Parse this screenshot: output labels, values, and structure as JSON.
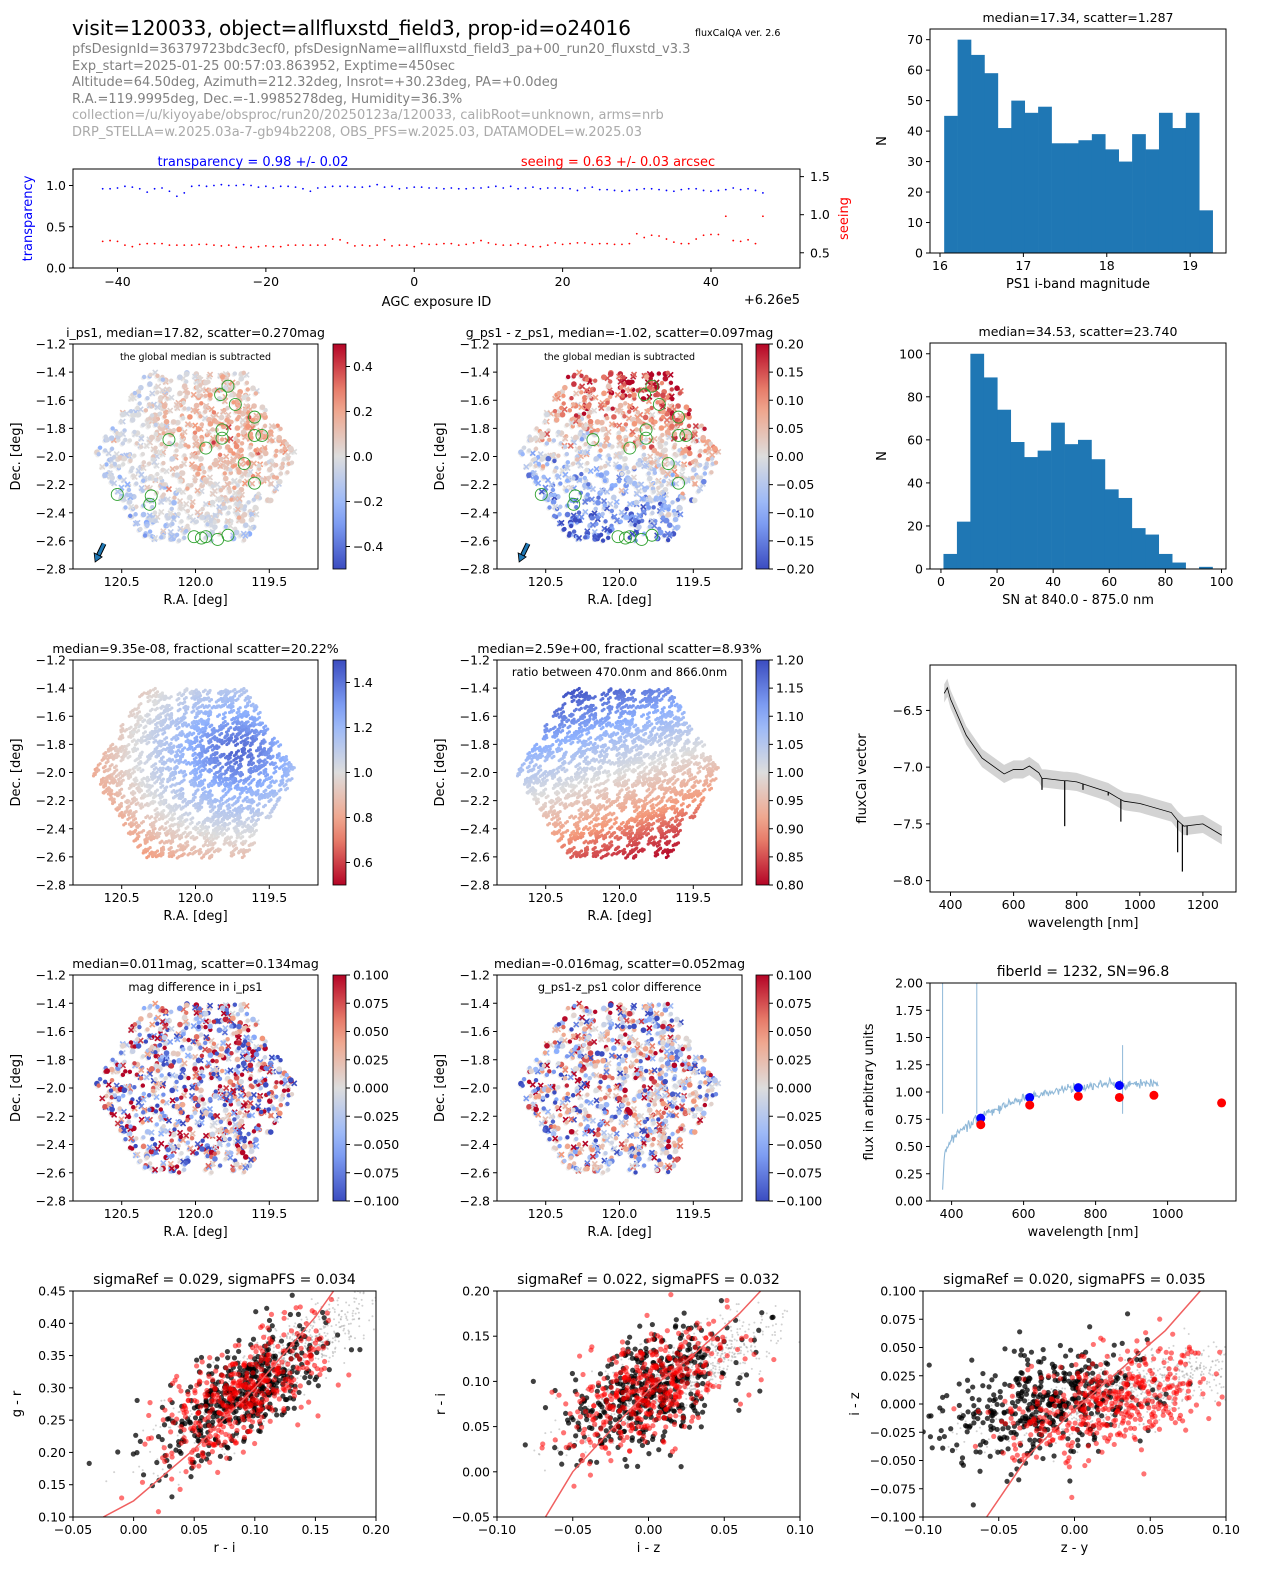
{
  "header": {
    "title": "visit=120033, object=allfluxstd_field3, prop-id=o24016",
    "version": "fluxCalQA ver. 2.6",
    "meta_lines": [
      "pfsDesignId=36379723bdc3ecf0, pfsDesignName=allfluxstd_field3_pa+00_run20_fluxstd_v3.3",
      "Exp_start=2025-01-25 00:57:03.863952, Exptime=450sec",
      "Altitude=64.50deg, Azimuth=212.32deg, Insrot=+30.23deg, PA=+0.0deg",
      "R.A.=119.9995deg, Dec.=-1.9985278deg, Humidity=36.3%"
    ],
    "meta_lines_light": [
      "collection=/u/kiyoyabe/obsproc/run20/20250123a/120033, calibRoot=unknown, arms=nrb",
      "DRP_STELLA=w.2025.03a-7-gb94b2208, OBS_PFS=w.2025.03, DATAMODEL=w.2025.03"
    ]
  },
  "colors": {
    "hist_bar": "#1f77b4",
    "transparency": "#0000ff",
    "seeing": "#ff0000",
    "spectrum_band": "#d3d3d3",
    "spectrum_line": "#000000",
    "fiber_spectrum": "#8fb8d8",
    "fit_curve": "#f06060"
  },
  "chart_data": [
    {
      "id": "agc",
      "type": "scatter",
      "xlabel": "AGC exposure ID",
      "x_offset_label": "+6.26e5",
      "ylabel_left": "transparency",
      "ylabel_right": "seeing",
      "annotation_left": "transparency = 0.98 +/- 0.02",
      "annotation_right": "seeing = 0.63 +/- 0.03 arcsec",
      "xlim": [
        -46,
        52
      ],
      "ylim_left": [
        0.0,
        1.2
      ],
      "ylim_right": [
        0.3,
        1.6
      ],
      "xticks": [
        -40,
        -20,
        0,
        20,
        40
      ],
      "yticks_left": [
        "0.0",
        "0.5",
        "1.0"
      ],
      "yticks_right": [
        "0.5",
        "1.0",
        "1.5"
      ],
      "x_start": -42,
      "x_step": 1,
      "series": [
        {
          "name": "transparency",
          "axis": "left",
          "values": [
            0.96,
            0.96,
            0.97,
            0.99,
            0.98,
            0.96,
            0.92,
            0.96,
            0.97,
            0.93,
            0.87,
            0.91,
            0.99,
            1.0,
            0.99,
            1.0,
            1.01,
            1.0,
            1.0,
            1.01,
            1.0,
            0.98,
            0.99,
            0.97,
            0.99,
            0.99,
            0.98,
            0.96,
            0.93,
            0.97,
            0.98,
            0.99,
            0.99,
            0.99,
            0.98,
            0.98,
            0.99,
            1.01,
            0.98,
            0.99,
            0.96,
            0.97,
            0.98,
            0.98,
            0.97,
            0.97,
            0.96,
            0.97,
            0.96,
            0.96,
            0.97,
            0.97,
            0.98,
            0.99,
            0.97,
            0.99,
            0.96,
            0.97,
            0.98,
            0.96,
            0.97,
            0.97,
            0.97,
            0.96,
            0.94,
            0.97,
            0.98,
            0.95,
            0.95,
            0.94,
            0.93,
            0.94,
            0.95,
            0.96,
            0.96,
            0.95,
            0.94,
            0.93,
            0.95,
            0.96,
            0.96,
            0.94,
            0.93,
            0.94,
            0.95,
            0.97,
            0.95,
            0.96,
            0.94,
            0.91
          ]
        },
        {
          "name": "seeing",
          "axis": "right",
          "values": [
            0.65,
            0.66,
            0.65,
            0.6,
            0.58,
            0.61,
            0.62,
            0.62,
            0.62,
            0.6,
            0.6,
            0.6,
            0.6,
            0.61,
            0.61,
            0.6,
            0.59,
            0.6,
            0.57,
            0.58,
            0.57,
            0.58,
            0.59,
            0.58,
            0.58,
            0.6,
            0.6,
            0.6,
            0.6,
            0.6,
            0.6,
            0.68,
            0.67,
            0.63,
            0.59,
            0.6,
            0.59,
            0.6,
            0.67,
            0.59,
            0.6,
            0.6,
            0.58,
            0.62,
            0.61,
            0.61,
            0.62,
            0.62,
            0.6,
            0.61,
            0.63,
            0.66,
            0.63,
            0.61,
            0.6,
            0.6,
            0.62,
            0.6,
            0.58,
            0.58,
            0.6,
            0.63,
            0.61,
            0.62,
            0.63,
            0.63,
            0.61,
            0.62,
            0.62,
            0.61,
            0.61,
            0.62,
            0.75,
            0.7,
            0.73,
            0.72,
            0.68,
            0.64,
            0.62,
            0.62,
            0.68,
            0.73,
            0.74,
            0.74,
            0.98,
            0.66,
            0.65,
            0.67,
            0.62,
            0.98
          ]
        }
      ]
    },
    {
      "id": "hist_mag",
      "type": "bar",
      "title": "median=17.34, scatter=1.287",
      "xlabel": "PS1 i-band magnitude",
      "ylabel": "N",
      "bin_start": 16.05,
      "bin_end": 19.27,
      "values": [
        45,
        70,
        65,
        59,
        41,
        50,
        46,
        48,
        36,
        36,
        37,
        39,
        34,
        30,
        39,
        34,
        46,
        41,
        46,
        14
      ],
      "xlim": [
        15.88,
        19.43
      ],
      "ylim": [
        0,
        73.5
      ],
      "xticks": [
        16,
        17,
        18,
        19
      ],
      "yticks": [
        0,
        10,
        20,
        30,
        40,
        50,
        60,
        70
      ]
    },
    {
      "id": "hist_sn",
      "type": "bar",
      "title": "median=34.53, scatter=23.740",
      "xlabel": "SN at 840.0 - 875.0 nm",
      "ylabel": "N",
      "bin_start": 0.9,
      "bin_end": 96.8,
      "values": [
        7,
        22,
        100,
        89,
        74,
        59,
        52,
        55,
        68,
        58,
        60,
        51,
        37,
        33,
        19,
        16,
        7,
        3,
        0,
        1
      ],
      "xlim": [
        -3.9,
        101.6
      ],
      "ylim": [
        0,
        105
      ],
      "xticks": [
        0,
        20,
        40,
        60,
        80,
        100
      ],
      "yticks": [
        0,
        20,
        40,
        60,
        80,
        100
      ]
    },
    {
      "id": "map_ips1",
      "type": "scatter",
      "title": "i_ps1, median=17.82, scatter=0.270mag",
      "annotation": "the global median is subtracted",
      "xlabel": "R.A. [deg]",
      "ylabel": "Dec. [deg]",
      "xlim": [
        120.83,
        119.17
      ],
      "ylim": [
        -2.8,
        -1.2
      ],
      "xticks": [
        "120.5",
        "120.0",
        "119.5"
      ],
      "yticks": [
        "-2.8",
        "-2.6",
        "-2.4",
        "-2.2",
        "-2.0",
        "-1.8",
        "-1.6",
        "-1.4",
        "-1.2"
      ],
      "colorbar": {
        "min": -0.5,
        "max": 0.5,
        "ticks": [
          "-0.4",
          "-0.2",
          "0.0",
          "0.2",
          "0.4"
        ],
        "cmap": "coolwarm"
      },
      "pattern": "hotspot",
      "center_ra": 120.0,
      "center_dec": -2.0,
      "has_arrow": true,
      "has_circles": true
    },
    {
      "id": "map_gz",
      "type": "scatter",
      "title": "g_ps1 - z_ps1, median=-1.02, scatter=0.097mag",
      "annotation": "the global median is subtracted",
      "xlabel": "R.A. [deg]",
      "ylabel": "Dec. [deg]",
      "xlim": [
        120.83,
        119.17
      ],
      "ylim": [
        -2.8,
        -1.2
      ],
      "xticks": [
        "120.5",
        "120.0",
        "119.5"
      ],
      "yticks": [
        "-2.8",
        "-2.6",
        "-2.4",
        "-2.2",
        "-2.0",
        "-1.8",
        "-1.6",
        "-1.4",
        "-1.2"
      ],
      "colorbar": {
        "min": -0.2,
        "max": 0.2,
        "ticks": [
          "-0.20",
          "-0.15",
          "-0.10",
          "-0.05",
          "0.00",
          "0.05",
          "0.10",
          "0.15",
          "0.20"
        ],
        "cmap": "coolwarm"
      },
      "pattern": "diagonal",
      "has_arrow": true,
      "has_circles": true
    },
    {
      "id": "map_fluxcal",
      "type": "scatter",
      "title": "median=9.35e-08, fractional scatter=20.22%",
      "annotation": "",
      "xlabel": "R.A. [deg]",
      "ylabel": "Dec. [deg]",
      "xlim": [
        120.83,
        119.17
      ],
      "ylim": [
        -2.8,
        -1.2
      ],
      "xticks": [
        "120.5",
        "120.0",
        "119.5"
      ],
      "yticks": [
        "-2.8",
        "-2.6",
        "-2.4",
        "-2.2",
        "-2.0",
        "-1.8",
        "-1.6",
        "-1.4",
        "-1.2"
      ],
      "colorbar": {
        "min": 0.5,
        "max": 1.5,
        "ticks": [
          "0.6",
          "0.8",
          "1.0",
          "1.2",
          "1.4"
        ],
        "cmap": "coolwarm_r"
      },
      "pattern": "radial",
      "has_arrow": false,
      "has_circles": false
    },
    {
      "id": "map_ratio",
      "type": "scatter",
      "title": "median=2.59e+00, fractional scatter=8.93%",
      "annotation": "ratio between 470.0nm and 866.0nm",
      "xlabel": "R.A. [deg]",
      "ylabel": "Dec. [deg]",
      "xlim": [
        120.83,
        119.17
      ],
      "ylim": [
        -2.8,
        -1.2
      ],
      "xticks": [
        "120.5",
        "120.0",
        "119.5"
      ],
      "yticks": [
        "-2.8",
        "-2.6",
        "-2.4",
        "-2.2",
        "-2.0",
        "-1.8",
        "-1.6",
        "-1.4",
        "-1.2"
      ],
      "colorbar": {
        "min": 0.8,
        "max": 1.2,
        "ticks": [
          "0.80",
          "0.85",
          "0.90",
          "0.95",
          "1.00",
          "1.05",
          "1.10",
          "1.15",
          "1.20"
        ],
        "cmap": "coolwarm_r"
      },
      "pattern": "gradient",
      "has_arrow": false,
      "has_circles": false
    },
    {
      "id": "map_magdiff",
      "type": "scatter",
      "title": "median=0.011mag, scatter=0.134mag",
      "annotation": "mag difference in i_ps1",
      "xlabel": "R.A. [deg]",
      "ylabel": "Dec. [deg]",
      "xlim": [
        120.83,
        119.17
      ],
      "ylim": [
        -2.8,
        -1.2
      ],
      "xticks": [
        "120.5",
        "120.0",
        "119.5"
      ],
      "yticks": [
        "-2.8",
        "-2.6",
        "-2.4",
        "-2.2",
        "-2.0",
        "-1.8",
        "-1.6",
        "-1.4",
        "-1.2"
      ],
      "colorbar": {
        "min": -0.1,
        "max": 0.1,
        "ticks": [
          "-0.100",
          "-0.075",
          "-0.050",
          "-0.025",
          "0.000",
          "0.025",
          "0.050",
          "0.075",
          "0.100"
        ],
        "cmap": "coolwarm"
      },
      "pattern": "random_wide",
      "has_arrow": false,
      "has_circles": false
    },
    {
      "id": "map_colordiff",
      "type": "scatter",
      "title": "median=-0.016mag, scatter=0.052mag",
      "annotation": "g_ps1-z_ps1 color difference",
      "xlabel": "R.A. [deg]",
      "ylabel": "Dec. [deg]",
      "xlim": [
        120.83,
        119.17
      ],
      "ylim": [
        -2.8,
        -1.2
      ],
      "xticks": [
        "120.5",
        "120.0",
        "119.5"
      ],
      "yticks": [
        "-2.8",
        "-2.6",
        "-2.4",
        "-2.2",
        "-2.0",
        "-1.8",
        "-1.6",
        "-1.4",
        "-1.2"
      ],
      "colorbar": {
        "min": -0.1,
        "max": 0.1,
        "ticks": [
          "-0.100",
          "-0.075",
          "-0.050",
          "-0.025",
          "0.000",
          "0.025",
          "0.050",
          "0.075",
          "0.100"
        ],
        "cmap": "coolwarm"
      },
      "pattern": "random_narrow",
      "has_arrow": false,
      "has_circles": false
    },
    {
      "id": "fluxcal_vector",
      "type": "line",
      "title": "",
      "xlabel": "wavelength [nm]",
      "ylabel": "fluxCal vector",
      "xlim": [
        335,
        1305
      ],
      "ylim": [
        -8.1,
        -6.1
      ],
      "xticks": [
        400,
        600,
        800,
        1000,
        1200
      ],
      "yticks": [
        "-8.0",
        "-7.5",
        "-7.0",
        "-6.5"
      ],
      "x": [
        380,
        390,
        400,
        450,
        500,
        550,
        570,
        600,
        630,
        650,
        680,
        690,
        700,
        760,
        770,
        800,
        900,
        930,
        950,
        1000,
        1100,
        1120,
        1140,
        1200,
        1260
      ],
      "y": [
        -6.35,
        -6.3,
        -6.4,
        -6.72,
        -6.92,
        -7.02,
        -7.06,
        -7.02,
        -7.02,
        -6.99,
        -7.05,
        -7.1,
        -7.1,
        -7.12,
        -7.12,
        -7.13,
        -7.22,
        -7.27,
        -7.3,
        -7.32,
        -7.4,
        -7.47,
        -7.52,
        -7.5,
        -7.6
      ],
      "band_halfwidth": 0.08,
      "absorption": [
        {
          "x": 690,
          "y": -7.2
        },
        {
          "x": 762,
          "y": -7.52
        },
        {
          "x": 820,
          "y": -7.2
        },
        {
          "x": 900,
          "y": -7.25
        },
        {
          "x": 940,
          "y": -7.48
        },
        {
          "x": 1120,
          "y": -7.75
        },
        {
          "x": 1135,
          "y": -7.92
        },
        {
          "x": 1150,
          "y": -7.6
        }
      ]
    },
    {
      "id": "fiber_spectrum",
      "type": "line",
      "title": "fiberId = 1232, SN=96.8",
      "xlabel": "wavelength [nm]",
      "ylabel": "flux in arbitrary units",
      "xlim": [
        340,
        1190
      ],
      "ylim": [
        0.0,
        2.0
      ],
      "xticks": [
        400,
        600,
        800,
        1000
      ],
      "yticks": [
        "0.00",
        "0.25",
        "0.50",
        "0.75",
        "1.00",
        "1.25",
        "1.50",
        "1.75",
        "2.00"
      ],
      "spectrum_x": [
        375,
        380,
        390,
        400,
        420,
        450,
        480,
        520,
        560,
        600,
        650,
        700,
        750,
        800,
        850,
        900,
        950,
        975
      ],
      "spectrum_y": [
        0.1,
        0.45,
        0.5,
        0.58,
        0.63,
        0.7,
        0.77,
        0.84,
        0.89,
        0.94,
        0.98,
        1.02,
        1.04,
        1.06,
        1.07,
        1.07,
        1.08,
        1.08
      ],
      "spikes": [
        {
          "x": 375,
          "y": 2.0
        },
        {
          "x": 470,
          "y": 2.0
        },
        {
          "x": 875,
          "y": 1.43
        }
      ],
      "points_blue": [
        {
          "x": 481,
          "y": 0.76
        },
        {
          "x": 617,
          "y": 0.95
        },
        {
          "x": 752,
          "y": 1.04
        },
        {
          "x": 866,
          "y": 1.06
        }
      ],
      "points_red": [
        {
          "x": 481,
          "y": 0.7
        },
        {
          "x": 617,
          "y": 0.88
        },
        {
          "x": 752,
          "y": 0.96
        },
        {
          "x": 866,
          "y": 0.95
        },
        {
          "x": 962,
          "y": 0.97
        },
        {
          "x": 1150,
          "y": 0.9
        }
      ]
    },
    {
      "id": "cc_gr_ri",
      "type": "scatter",
      "title": "sigmaRef = 0.029, sigmaPFS = 0.034",
      "xlabel": "r - i",
      "ylabel": "g - r",
      "xlim": [
        -0.05,
        0.2
      ],
      "ylim": [
        0.1,
        0.45
      ],
      "xticks": [
        "-0.05",
        "0.00",
        "0.05",
        "0.10",
        "0.15",
        "0.20"
      ],
      "yticks": [
        "0.10",
        "0.15",
        "0.20",
        "0.25",
        "0.30",
        "0.35",
        "0.40",
        "0.45"
      ],
      "locus": {
        "x0": 0.09,
        "y0": 0.29,
        "slope": 1.5,
        "sx": 0.03,
        "sy": 0.03
      },
      "fit_curve": [
        [
          -0.025,
          0.1
        ],
        [
          0.0,
          0.125
        ],
        [
          0.05,
          0.205
        ],
        [
          0.1,
          0.3
        ],
        [
          0.15,
          0.41
        ],
        [
          0.165,
          0.45
        ]
      ]
    },
    {
      "id": "cc_ri_iz",
      "type": "scatter",
      "title": "sigmaRef = 0.022, sigmaPFS = 0.032",
      "xlabel": "i - z",
      "ylabel": "r - i",
      "xlim": [
        -0.1,
        0.1
      ],
      "ylim": [
        -0.05,
        0.2
      ],
      "xticks": [
        "-0.10",
        "-0.05",
        "0.00",
        "0.05",
        "0.10"
      ],
      "yticks": [
        "-0.05",
        "0.00",
        "0.05",
        "0.10",
        "0.15",
        "0.20"
      ],
      "locus": {
        "x0": 0.0,
        "y0": 0.09,
        "slope": 0.9,
        "sx": 0.022,
        "sy": 0.028
      },
      "fit_curve": [
        [
          -0.068,
          -0.05
        ],
        [
          -0.05,
          0.0
        ],
        [
          -0.02,
          0.055
        ],
        [
          0.0,
          0.09
        ],
        [
          0.03,
          0.13
        ],
        [
          0.06,
          0.175
        ],
        [
          0.074,
          0.2
        ]
      ]
    },
    {
      "id": "cc_iz_zy",
      "type": "scatter",
      "title": "sigmaRef = 0.020, sigmaPFS = 0.035",
      "xlabel": "z - y",
      "ylabel": "i - z",
      "xlim": [
        -0.1,
        0.1
      ],
      "ylim": [
        -0.1,
        0.1
      ],
      "xticks": [
        "-0.10",
        "-0.05",
        "0.00",
        "0.05",
        "0.10"
      ],
      "yticks": [
        "-0.100",
        "-0.075",
        "-0.050",
        "-0.025",
        "0.000",
        "0.025",
        "0.050",
        "0.075",
        "0.100"
      ],
      "locus": {
        "x0": 0.01,
        "y0": 0.0,
        "slope": 0.4,
        "sx": 0.03,
        "sy": 0.022
      },
      "fit_curve": [
        [
          -0.058,
          -0.1
        ],
        [
          -0.03,
          -0.045
        ],
        [
          0.0,
          -0.005
        ],
        [
          0.03,
          0.03
        ],
        [
          0.06,
          0.065
        ],
        [
          0.083,
          0.1
        ]
      ]
    }
  ]
}
